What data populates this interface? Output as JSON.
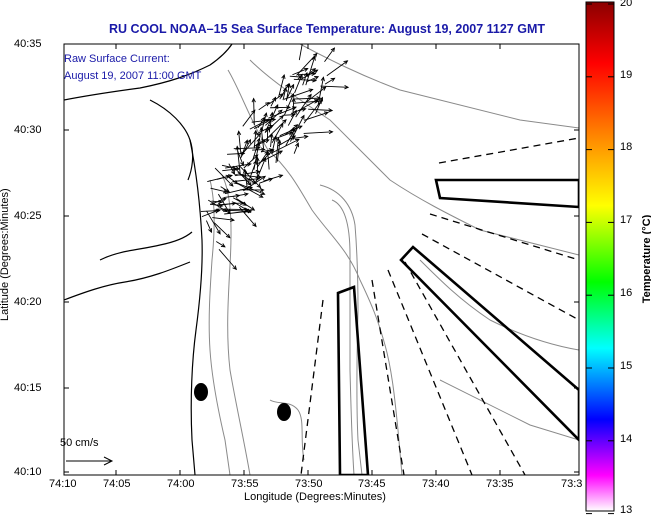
{
  "title": "RU COOL  NOAA–15  Sea Surface Temperature:  August 19, 2007 1127 GMT",
  "current_label_line1": "Raw Surface Current:",
  "current_label_line2": "August 19, 2007 11:00 GMT",
  "scale_label": "50 cm/s",
  "x_axis_label": "Longitude (Degrees:Minutes)",
  "y_axis_label": "Latitude (Degrees:Minutes)",
  "x_ticks": [
    "74:10",
    "74:05",
    "74:00",
    "73:55",
    "73:50",
    "73:45",
    "73:40",
    "73:35",
    "73:3"
  ],
  "y_ticks": [
    "40:35",
    "40:30",
    "40:25",
    "40:20",
    "40:15",
    "40:10"
  ],
  "colorbar": {
    "title": "Temperature (°C)",
    "labels": [
      "20",
      "19",
      "18",
      "17",
      "16",
      "15",
      "14",
      "13"
    ],
    "colors": [
      "#8b0000",
      "#ff0000",
      "#ff8c00",
      "#ffff00",
      "#00ff00",
      "#00ffff",
      "#0000ff",
      "#ff00ff",
      "#ffffff"
    ]
  },
  "map": {
    "land_color": "#ffffff",
    "contour_color": "#8a8a8a",
    "coast_color": "#000000",
    "vector_color": "#000000"
  }
}
